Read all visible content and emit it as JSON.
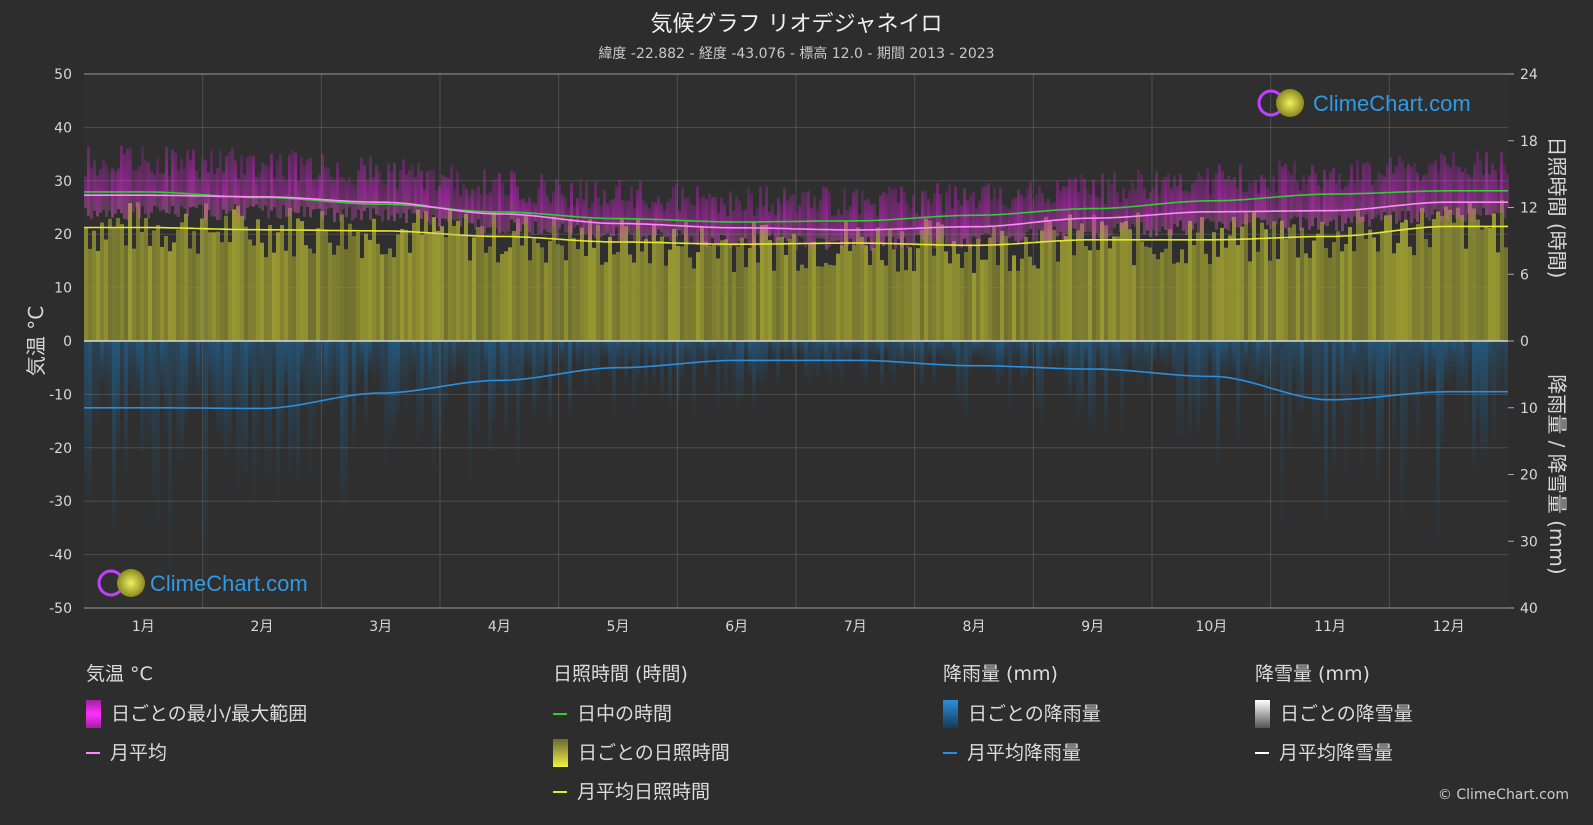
{
  "title": "気候グラフ リオデジャネイロ",
  "subtitle": "緯度 -22.882 - 経度 -43.076 - 標高 12.0 - 期間 2013 - 2023",
  "watermark": "ClimeChart.com",
  "copyright": "© ClimeChart.com",
  "colors": {
    "background": "#2d2d2d",
    "temp_range": "#d020d0",
    "temp_avg": "#ff88ff",
    "daylight": "#33cc33",
    "sunshine_fill": "#a5a532",
    "sunshine_avg": "#e8e834",
    "rain_fill": "#1f5f8f",
    "rain_avg": "#2a8fe0",
    "snow_avg": "#ffffff",
    "brand_blue": "#2f9ae6"
  },
  "chart_data": {
    "type": "line",
    "categories": [
      "1月",
      "2月",
      "3月",
      "4月",
      "5月",
      "6月",
      "7月",
      "8月",
      "9月",
      "10月",
      "11月",
      "12月"
    ],
    "axes": {
      "left": {
        "label": "気温 °C",
        "range": [
          -50,
          50
        ],
        "ticks": [
          50,
          40,
          30,
          20,
          10,
          0,
          -10,
          -20,
          -30,
          -40,
          -50
        ]
      },
      "right_top": {
        "label": "日照時間 (時間)",
        "range": [
          0,
          24
        ],
        "ticks": [
          24,
          18,
          12,
          6,
          0
        ]
      },
      "right_bottom": {
        "label": "降雨量 / 降雪量 (mm)",
        "range": [
          0,
          40
        ],
        "ticks": [
          10,
          20,
          30,
          40
        ]
      }
    },
    "grid": true,
    "series": [
      {
        "name": "日中の時間",
        "axis": "right_top",
        "values": [
          13.4,
          12.9,
          12.3,
          11.6,
          11.0,
          10.7,
          10.8,
          11.3,
          11.9,
          12.6,
          13.2,
          13.5
        ]
      },
      {
        "name": "月平均",
        "axis": "left",
        "values": [
          27.3,
          27.0,
          26.0,
          23.8,
          22.0,
          21.2,
          20.8,
          21.4,
          23.0,
          24.2,
          24.4,
          26.0
        ]
      },
      {
        "name": "月平均日照時間",
        "axis": "right_top",
        "values": [
          10.2,
          10.0,
          9.9,
          9.4,
          8.9,
          8.7,
          8.8,
          8.6,
          9.1,
          9.1,
          9.4,
          10.3
        ]
      },
      {
        "name": "月平均降雨量",
        "axis": "right_bottom",
        "values": [
          10.0,
          10.1,
          7.8,
          5.9,
          4.0,
          2.9,
          2.9,
          3.7,
          4.2,
          5.3,
          8.8,
          7.6
        ]
      },
      {
        "name": "月平均降雪量",
        "axis": "right_bottom",
        "values": [
          0,
          0,
          0,
          0,
          0,
          0,
          0,
          0,
          0,
          0,
          0,
          0
        ]
      }
    ],
    "temp_range": {
      "name": "日ごとの最小/最大範囲",
      "min": [
        24.0,
        24.2,
        23.5,
        21.5,
        19.8,
        18.8,
        18.3,
        18.8,
        20.5,
        21.5,
        22.0,
        23.5
      ],
      "max": [
        32.5,
        32.0,
        30.5,
        28.0,
        26.0,
        25.0,
        25.0,
        25.5,
        27.5,
        29.0,
        30.0,
        31.5
      ]
    }
  },
  "legend": {
    "temperature": {
      "header": "気温 °C",
      "items": [
        "日ごとの最小/最大範囲",
        "月平均"
      ]
    },
    "sunshine": {
      "header": "日照時間 (時間)",
      "items": [
        "日中の時間",
        "日ごとの日照時間",
        "月平均日照時間"
      ]
    },
    "rain": {
      "header": "降雨量 (mm)",
      "items": [
        "日ごとの降雨量",
        "月平均降雨量"
      ]
    },
    "snow": {
      "header": "降雪量 (mm)",
      "items": [
        "日ごとの降雪量",
        "月平均降雪量"
      ]
    }
  }
}
